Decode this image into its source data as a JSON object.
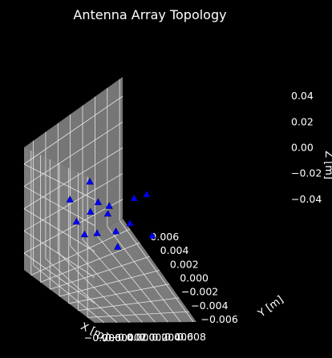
{
  "chart_data": {
    "type": "scatter3d",
    "title": "Antenna Array Topology",
    "xlabel": "X [m]",
    "ylabel": "Y [m]",
    "zlabel": "Z [m]",
    "xlim": [
      -0.0075,
      0.0085
    ],
    "ylim": [
      -0.0075,
      0.0075
    ],
    "zlim": [
      -0.055,
      0.055
    ],
    "x_ticks": [
      "−0.006",
      "−0.004",
      "−0.002",
      "0.000",
      "0.002",
      "0.004",
      "0.006",
      "0.008"
    ],
    "x_tick_values": [
      -0.006,
      -0.004,
      -0.002,
      0.0,
      0.002,
      0.004,
      0.006,
      0.008
    ],
    "y_ticks": [
      "−0.006",
      "−0.004",
      "−0.002",
      "0.000",
      "0.002",
      "0.004",
      "0.006"
    ],
    "y_tick_values": [
      -0.006,
      -0.004,
      -0.002,
      0.0,
      0.002,
      0.004,
      0.006
    ],
    "z_ticks": [
      "−0.04",
      "−0.02",
      "0.00",
      "0.02",
      "0.04"
    ],
    "z_tick_values": [
      -0.04,
      -0.02,
      0.0,
      0.02,
      0.04
    ],
    "grid": true,
    "marker": "triangle",
    "colors": {
      "marker": "#0000ff",
      "background": "#000000",
      "pane": "#7f7f7f",
      "grid": "#e6e6e6",
      "text": "#ffffff"
    },
    "points": [
      {
        "x": -0.005,
        "y": -0.002,
        "z": 0.0
      },
      {
        "x": -0.002,
        "y": -0.005,
        "z": 0.0
      },
      {
        "x": -0.003,
        "y": -0.002,
        "z": 0.0
      },
      {
        "x": -0.004,
        "y": 0.001,
        "z": 0.0
      },
      {
        "x": 0.0,
        "y": -0.002,
        "z": 0.0
      },
      {
        "x": -0.001,
        "y": 0.002,
        "z": 0.0
      },
      {
        "x": -0.002,
        "y": 0.005,
        "z": 0.0
      },
      {
        "x": 0.001,
        "y": 0.001,
        "z": 0.0
      },
      {
        "x": 0.001,
        "y": 0.003,
        "z": 0.0
      },
      {
        "x": 0.002,
        "y": 0.002,
        "z": 0.0
      },
      {
        "x": 0.002,
        "y": 0.006,
        "z": 0.0
      },
      {
        "x": 0.003,
        "y": -0.001,
        "z": 0.0
      },
      {
        "x": 0.005,
        "y": -0.003,
        "z": 0.0
      },
      {
        "x": 0.006,
        "y": 0.002,
        "z": 0.0
      },
      {
        "x": 0.008,
        "y": 0.002,
        "z": 0.0
      }
    ]
  }
}
